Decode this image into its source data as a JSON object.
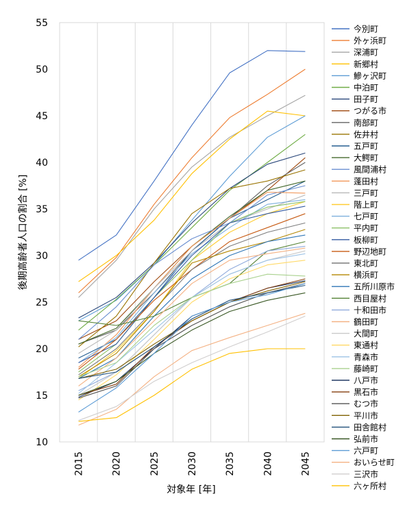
{
  "chart_data": {
    "type": "line",
    "x": [
      2015,
      2020,
      2025,
      2030,
      2035,
      2040,
      2045
    ],
    "xlabel": "対象年 [年]",
    "ylabel": "後期高齢者人口の割合 [%]",
    "ylim": [
      10,
      55
    ],
    "yticks": [
      10,
      15,
      20,
      25,
      30,
      35,
      40,
      45,
      50,
      55
    ],
    "grid": "vertical",
    "legend_position": "right",
    "series": [
      {
        "name": "今別町",
        "color": "#4472C4",
        "values": [
          29.5,
          32.2,
          38.0,
          44.0,
          49.6,
          52.0,
          51.9
        ]
      },
      {
        "name": "外ヶ浜町",
        "color": "#ED7D31",
        "values": [
          26.0,
          29.8,
          35.5,
          40.5,
          44.8,
          47.3,
          50.0
        ]
      },
      {
        "name": "深浦町",
        "color": "#A5A5A5",
        "values": [
          25.5,
          29.5,
          35.0,
          39.5,
          42.7,
          45.0,
          47.2
        ]
      },
      {
        "name": "新郷村",
        "color": "#FFC000",
        "values": [
          27.2,
          30.0,
          33.8,
          38.8,
          42.5,
          45.5,
          45.0
        ]
      },
      {
        "name": "鰺ヶ沢町",
        "color": "#5B9BD5",
        "values": [
          23.0,
          25.2,
          29.0,
          33.8,
          38.5,
          42.7,
          45.0
        ]
      },
      {
        "name": "中泊町",
        "color": "#70AD47",
        "values": [
          22.0,
          25.3,
          29.0,
          33.0,
          37.0,
          40.0,
          43.0
        ]
      },
      {
        "name": "田子町",
        "color": "#264478",
        "values": [
          23.3,
          25.5,
          29.2,
          33.5,
          37.2,
          39.8,
          41.0
        ]
      },
      {
        "name": "つがる市",
        "color": "#9E480E",
        "values": [
          21.0,
          23.0,
          27.2,
          31.0,
          34.0,
          37.0,
          40.5
        ]
      },
      {
        "name": "南部町",
        "color": "#636363",
        "values": [
          20.5,
          22.0,
          26.0,
          30.5,
          34.0,
          37.5,
          40.0
        ]
      },
      {
        "name": "佐井村",
        "color": "#997300",
        "values": [
          20.2,
          23.5,
          29.2,
          34.5,
          37.2,
          38.0,
          39.2
        ]
      },
      {
        "name": "五戸町",
        "color": "#255E91",
        "values": [
          19.0,
          21.0,
          25.5,
          30.5,
          34.0,
          36.0,
          38.0
        ]
      },
      {
        "name": "大鰐町",
        "color": "#43682B",
        "values": [
          20.5,
          22.2,
          26.5,
          31.0,
          34.2,
          37.0,
          38.0
        ]
      },
      {
        "name": "風間浦村",
        "color": "#698ED0",
        "values": [
          21.0,
          24.5,
          29.0,
          31.8,
          33.5,
          36.5,
          37.5
        ]
      },
      {
        "name": "蓬田村",
        "color": "#F1975A",
        "values": [
          18.0,
          21.5,
          26.5,
          31.0,
          34.0,
          36.8,
          36.7
        ]
      },
      {
        "name": "三戸町",
        "color": "#B7B7B7",
        "values": [
          19.5,
          22.0,
          26.5,
          30.5,
          33.5,
          35.0,
          36.5
        ]
      },
      {
        "name": "階上町",
        "color": "#FFCD33",
        "values": [
          16.8,
          19.8,
          24.0,
          29.5,
          32.5,
          34.5,
          35.8
        ]
      },
      {
        "name": "七戸町",
        "color": "#7CAFDD",
        "values": [
          18.5,
          21.2,
          26.0,
          30.2,
          33.0,
          35.5,
          36.0
        ]
      },
      {
        "name": "平内町",
        "color": "#8CC168",
        "values": [
          17.5,
          20.5,
          25.5,
          29.5,
          33.5,
          35.2,
          35.8
        ]
      },
      {
        "name": "板柳町",
        "color": "#335AA1",
        "values": [
          18.5,
          20.5,
          25.5,
          30.0,
          33.5,
          34.5,
          35.3
        ]
      },
      {
        "name": "野辺地町",
        "color": "#C65911",
        "values": [
          17.8,
          21.0,
          25.2,
          28.5,
          31.5,
          33.0,
          34.5
        ]
      },
      {
        "name": "東北町",
        "color": "#7C7C7C",
        "values": [
          17.2,
          20.0,
          24.2,
          28.5,
          31.0,
          32.5,
          33.5
        ]
      },
      {
        "name": "横浜町",
        "color": "#B38600",
        "values": [
          17.0,
          19.5,
          24.0,
          29.2,
          30.5,
          31.5,
          32.8
        ]
      },
      {
        "name": "五所川原市",
        "color": "#2E75B6",
        "values": [
          16.8,
          19.0,
          23.5,
          27.5,
          30.0,
          31.5,
          32.2
        ]
      },
      {
        "name": "西目屋村",
        "color": "#548235",
        "values": [
          23.0,
          22.5,
          23.5,
          25.5,
          27.0,
          30.5,
          31.5
        ]
      },
      {
        "name": "十和田市",
        "color": "#8FAADC",
        "values": [
          15.5,
          17.5,
          21.5,
          25.5,
          28.5,
          30.5,
          31.0
        ]
      },
      {
        "name": "鶴田町",
        "color": "#F4B183",
        "values": [
          16.0,
          19.0,
          23.0,
          27.0,
          29.5,
          30.2,
          30.8
        ]
      },
      {
        "name": "大間町",
        "color": "#C9C9C9",
        "values": [
          15.0,
          17.5,
          21.5,
          25.5,
          28.0,
          29.5,
          30.5
        ]
      },
      {
        "name": "東通村",
        "color": "#FFD966",
        "values": [
          14.5,
          17.2,
          21.0,
          25.0,
          27.5,
          29.0,
          29.5
        ]
      },
      {
        "name": "青森市",
        "color": "#9DC3E6",
        "values": [
          15.2,
          18.5,
          22.0,
          25.5,
          28.0,
          29.5,
          30.2
        ]
      },
      {
        "name": "藤崎町",
        "color": "#A9D18E",
        "values": [
          17.0,
          18.5,
          22.5,
          25.5,
          27.0,
          28.0,
          27.8
        ]
      },
      {
        "name": "八戸市",
        "color": "#203864",
        "values": [
          14.8,
          16.5,
          20.0,
          23.5,
          25.0,
          26.5,
          27.3
        ]
      },
      {
        "name": "黒石市",
        "color": "#843C0C",
        "values": [
          15.0,
          16.2,
          20.2,
          23.0,
          25.0,
          26.5,
          27.5
        ]
      },
      {
        "name": "むつ市",
        "color": "#525252",
        "values": [
          14.7,
          16.0,
          20.0,
          22.5,
          24.5,
          26.0,
          27.0
        ]
      },
      {
        "name": "平川市",
        "color": "#7F6000",
        "values": [
          16.8,
          17.8,
          20.5,
          23.0,
          25.0,
          26.2,
          27.2
        ]
      },
      {
        "name": "田舎館村",
        "color": "#1F4E79",
        "values": [
          16.8,
          17.5,
          20.2,
          23.2,
          25.2,
          26.0,
          26.8
        ]
      },
      {
        "name": "弘前市",
        "color": "#385723",
        "values": [
          15.0,
          16.5,
          19.5,
          22.0,
          24.0,
          25.2,
          26.0
        ]
      },
      {
        "name": "六戸町",
        "color": "#5B9BD5",
        "values": [
          13.2,
          15.8,
          19.5,
          23.5,
          25.0,
          25.8,
          27.0
        ]
      },
      {
        "name": "おいらせ町",
        "color": "#F4B183",
        "values": [
          11.8,
          13.5,
          17.0,
          19.8,
          21.2,
          22.5,
          23.8
        ]
      },
      {
        "name": "三沢市",
        "color": "#D0CECE",
        "values": [
          12.3,
          13.8,
          16.5,
          18.5,
          20.2,
          21.8,
          23.5
        ]
      },
      {
        "name": "六ヶ所村",
        "color": "#FFC000",
        "values": [
          12.2,
          12.6,
          15.0,
          17.8,
          19.5,
          20.0,
          20.0
        ]
      }
    ]
  }
}
